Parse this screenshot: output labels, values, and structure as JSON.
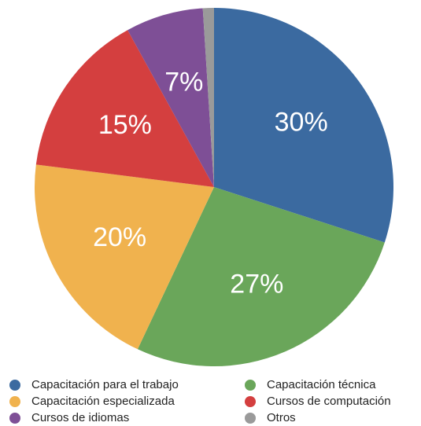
{
  "chart_data": {
    "type": "pie",
    "categories": [
      "Capacitación para el trabajo",
      "Capacitación técnica",
      "Capacitación especializada",
      "Cursos de computación",
      "Cursos de idiomas",
      "Otros"
    ],
    "values": [
      30,
      27,
      20,
      15,
      7,
      1
    ],
    "value_labels": [
      "30%",
      "27%",
      "20%",
      "15%",
      "7%",
      null
    ],
    "colors": [
      "#3b6aa0",
      "#6aa65a",
      "#f0b24e",
      "#d43f3f",
      "#7e4f96",
      "#9a9a9a"
    ]
  }
}
